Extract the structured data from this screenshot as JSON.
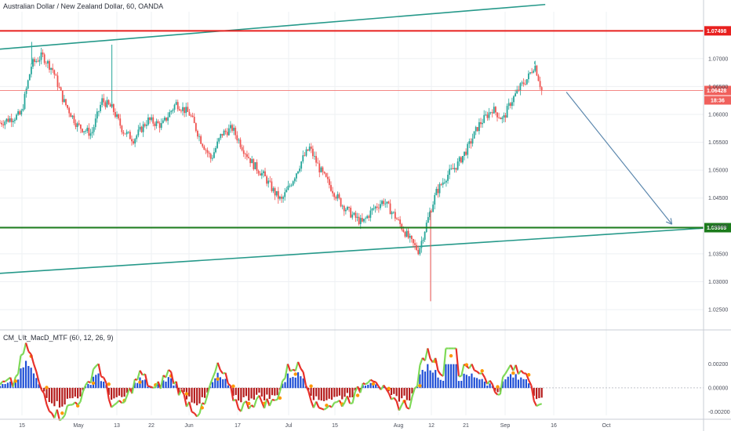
{
  "header": {
    "title": "Australian Dollar / New Zealand Dollar, 60, OANDA"
  },
  "indicator": {
    "title": "CM_Ult_MacD_MTF (60, 12, 26, 9)"
  },
  "chart_data": {
    "type": "candlestick",
    "symbol": "Australian Dollar / New Zealand Dollar",
    "interval": "60",
    "source": "OANDA",
    "price_ticks": [
      "1.07000",
      "1.06500",
      "1.06000",
      "1.05500",
      "1.05000",
      "1.04500",
      "1.04000",
      "1.03500",
      "1.03000",
      "1.02500"
    ],
    "price_tick_values": [
      1.07,
      1.065,
      1.06,
      1.055,
      1.05,
      1.045,
      1.04,
      1.035,
      1.03,
      1.025
    ],
    "ylim": [
      1.0215,
      1.0784
    ],
    "date_ticks": [
      "15",
      "May",
      "13",
      "22",
      "Jun",
      "17",
      "Jul",
      "15",
      "Aug",
      "12",
      "21",
      "Sep",
      "16",
      "Oct"
    ],
    "price_path": [
      [
        0,
        1.0585
      ],
      [
        0.03,
        1.06
      ],
      [
        0.045,
        1.069
      ],
      [
        0.06,
        1.0705
      ],
      [
        0.075,
        1.068
      ],
      [
        0.09,
        1.0625
      ],
      [
        0.11,
        1.058
      ],
      [
        0.13,
        1.0565
      ],
      [
        0.145,
        1.0625
      ],
      [
        0.16,
        1.061
      ],
      [
        0.175,
        1.057
      ],
      [
        0.19,
        1.0555
      ],
      [
        0.21,
        1.059
      ],
      [
        0.23,
        1.058
      ],
      [
        0.25,
        1.062
      ],
      [
        0.27,
        1.06
      ],
      [
        0.285,
        1.0555
      ],
      [
        0.3,
        1.052
      ],
      [
        0.315,
        1.0565
      ],
      [
        0.33,
        1.0575
      ],
      [
        0.345,
        1.054
      ],
      [
        0.36,
        1.051
      ],
      [
        0.375,
        1.049
      ],
      [
        0.39,
        1.046
      ],
      [
        0.4,
        1.0445
      ],
      [
        0.415,
        1.048
      ],
      [
        0.43,
        1.052
      ],
      [
        0.44,
        1.054
      ],
      [
        0.455,
        1.05
      ],
      [
        0.47,
        1.047
      ],
      [
        0.485,
        1.044
      ],
      [
        0.5,
        1.042
      ],
      [
        0.515,
        1.0405
      ],
      [
        0.53,
        1.043
      ],
      [
        0.545,
        1.0445
      ],
      [
        0.56,
        1.042
      ],
      [
        0.575,
        1.039
      ],
      [
        0.585,
        1.037
      ],
      [
        0.595,
        1.0355
      ],
      [
        0.61,
        1.042
      ],
      [
        0.62,
        1.046
      ],
      [
        0.635,
        1.049
      ],
      [
        0.65,
        1.051
      ],
      [
        0.665,
        1.054
      ],
      [
        0.68,
        1.058
      ],
      [
        0.7,
        1.061
      ],
      [
        0.715,
        1.059
      ],
      [
        0.725,
        1.062
      ],
      [
        0.74,
        1.065
      ],
      [
        0.75,
        1.0665
      ],
      [
        0.76,
        1.069
      ],
      [
        0.77,
        1.06428
      ]
    ],
    "price_extremes": [
      [
        0.045,
        1.073
      ],
      [
        0.159,
        1.0725
      ],
      [
        0.612,
        1.0265
      ],
      [
        0.76,
        1.0695
      ]
    ],
    "levels": [
      {
        "name": "resistance",
        "value": 1.07498,
        "label": "1.07498",
        "color": "#e8201f"
      },
      {
        "name": "support",
        "value": 1.03969,
        "label": "1.03969",
        "color": "#1b7b1b"
      },
      {
        "name": "last-price",
        "value": 1.06428,
        "label": "1.06428",
        "color": "#f0605c"
      }
    ],
    "countdown_label": "18:36",
    "trendlines": [
      {
        "name": "upper-channel",
        "x": [
          0,
          0.775
        ],
        "y": [
          1.0717,
          1.0797
        ],
        "color": "#26998a"
      },
      {
        "name": "lower-channel",
        "x": [
          0,
          1.0
        ],
        "y": [
          1.0315,
          1.0396
        ],
        "color": "#26998a"
      }
    ],
    "projection_arrow": {
      "x": [
        0.805,
        0.955
      ],
      "y": [
        1.064,
        1.0403
      ],
      "color": "#5b87ad"
    },
    "macd": {
      "ticks": [
        "0.00200",
        "0.00000",
        "-0.00200"
      ],
      "tick_values": [
        0.002,
        0.0,
        -0.002
      ],
      "ylim": [
        -0.0023,
        0.0036
      ],
      "colors": {
        "macd_up": "#7ed957",
        "macd_down": "#e8312a",
        "hist_up": "#1f4fd6",
        "hist_down": "#b51c1c",
        "signal": "#ff9800"
      }
    }
  }
}
